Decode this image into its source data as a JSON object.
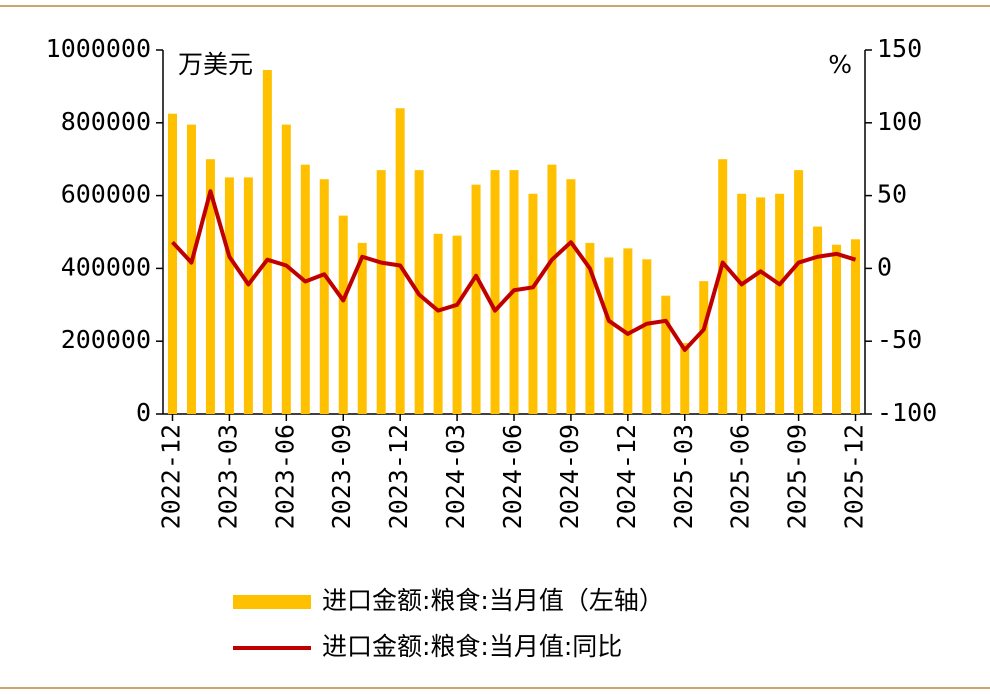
{
  "chart_data": {
    "type": "bar_line",
    "unit_left": "万美元",
    "unit_right": "%",
    "categories": [
      "2022-12",
      null,
      null,
      "2023-03",
      null,
      null,
      "2023-06",
      null,
      null,
      "2023-09",
      null,
      null,
      "2023-12",
      null,
      null,
      "2024-03",
      null,
      null,
      "2024-06",
      null,
      null,
      "2024-09",
      null,
      null,
      "2024-12",
      null,
      null,
      "2025-03",
      null,
      null,
      "2025-06",
      null,
      null,
      "2025-09",
      null,
      null,
      "2025-12"
    ],
    "series": [
      {
        "name": "进口金额:粮食:当月值（左轴）",
        "type": "bar",
        "color": "#FFC000",
        "axis": "y",
        "values": [
          825000,
          795000,
          700000,
          650000,
          650000,
          945000,
          795000,
          685000,
          645000,
          545000,
          470000,
          670000,
          840000,
          670000,
          495000,
          490000,
          630000,
          670000,
          670000,
          605000,
          685000,
          645000,
          470000,
          430000,
          455000,
          425000,
          325000,
          195000,
          365000,
          700000,
          605000,
          595000,
          605000,
          670000,
          515000,
          465000,
          480000
        ]
      },
      {
        "name": "进口金额:粮食:当月值:同比",
        "type": "line",
        "color": "#C00000",
        "axis": "y2",
        "values": [
          18,
          4,
          53,
          8,
          -11,
          6,
          2,
          -9,
          -4,
          -22,
          8,
          4,
          2,
          -18,
          -29,
          -25,
          -5,
          -29,
          -15,
          -13,
          6,
          18,
          0,
          -36,
          -45,
          -38,
          -36,
          -56,
          -42,
          4,
          -11,
          -2,
          -11,
          4,
          8,
          10,
          6
        ]
      }
    ],
    "ylim": [
      0,
      1000000
    ],
    "yticks": [
      0,
      200000,
      400000,
      600000,
      800000,
      1000000
    ],
    "y2lim": [
      -100,
      150
    ],
    "y2ticks": [
      -100,
      -50,
      0,
      50,
      100,
      150
    ],
    "grid": false
  }
}
